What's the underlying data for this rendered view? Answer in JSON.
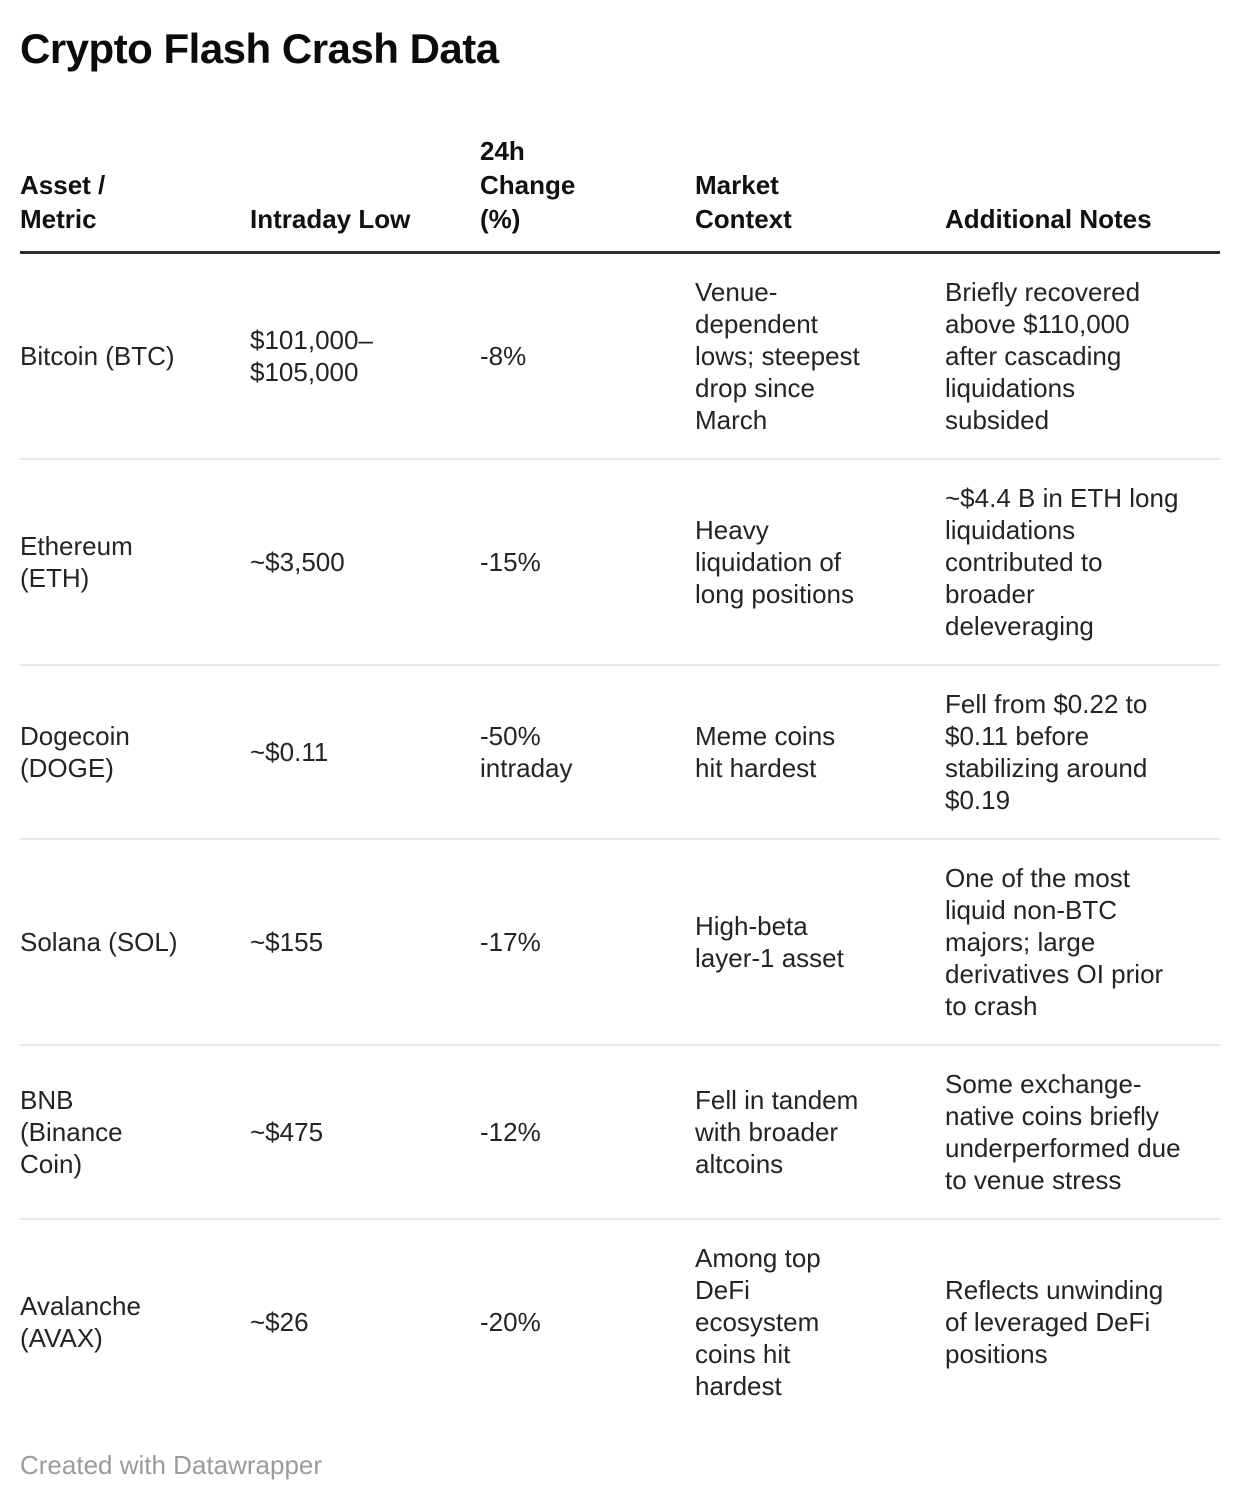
{
  "title": "Crypto Flash Crash Data",
  "footer": {
    "credit": "Created with Datawrapper"
  },
  "colors": {
    "title": "#0b0b0b",
    "header_text": "#111111",
    "body_text": "#242424",
    "header_rule": "#2e2e2e",
    "row_rule": "#e7e7e7",
    "footer_text": "#9b9b9b",
    "background": "#ffffff"
  },
  "chart_data": {
    "type": "table",
    "title": "Crypto Flash Crash Data",
    "columns": [
      "Asset / Metric",
      "Intraday Low",
      "24h Change (%)",
      "Market Context",
      "Additional Notes"
    ],
    "rows": [
      {
        "asset": "Bitcoin (BTC)",
        "intraday_low": "$101,000–$105,000",
        "change_24h": "-8%",
        "market_context": "Venue-dependent lows; steepest drop since March",
        "additional_notes": "Briefly recovered above $110,000 after cascading liquidations subsided"
      },
      {
        "asset": "Ethereum (ETH)",
        "intraday_low": "~$3,500",
        "change_24h": "-15%",
        "market_context": "Heavy liquidation of long positions",
        "additional_notes": "~$4.4 B in ETH long liquidations contributed to broader deleveraging"
      },
      {
        "asset": "Dogecoin (DOGE)",
        "intraday_low": "~$0.11",
        "change_24h": "-50% intraday",
        "market_context": "Meme coins hit hardest",
        "additional_notes": "Fell from $0.22 to $0.11 before stabilizing around $0.19"
      },
      {
        "asset": "Solana (SOL)",
        "intraday_low": "~$155",
        "change_24h": "-17%",
        "market_context": "High-beta layer-1 asset",
        "additional_notes": "One of the most liquid non-BTC majors; large derivatives OI prior to crash"
      },
      {
        "asset": "BNB (Binance Coin)",
        "intraday_low": "~$475",
        "change_24h": "-12%",
        "market_context": "Fell in tandem with broader altcoins",
        "additional_notes": "Some exchange-native coins briefly underperformed due to venue stress"
      },
      {
        "asset": "Avalanche (AVAX)",
        "intraday_low": "~$26",
        "change_24h": "-20%",
        "market_context": "Among top DeFi ecosystem coins hit hardest",
        "additional_notes": "Reflects unwinding of leveraged DeFi positions"
      }
    ]
  },
  "display": {
    "headers": {
      "asset": "Asset /\nMetric",
      "intraday_low": "Intraday Low",
      "change_24h": "24h\nChange\n(%)",
      "market_context": "Market\nContext",
      "additional_notes": "Additional Notes"
    },
    "rows": [
      {
        "asset": "Bitcoin (BTC)",
        "intraday_low": "$101,000–\n$105,000",
        "change_24h": "-8%",
        "market_context": "Venue-\ndependent\nlows; steepest\ndrop since\nMarch",
        "additional_notes": "Briefly recovered\nabove $110,000\nafter cascading\nliquidations\nsubsided"
      },
      {
        "asset": "Ethereum\n(ETH)",
        "intraday_low": "~$3,500",
        "change_24h": "-15%",
        "market_context": "Heavy\nliquidation of\nlong positions",
        "additional_notes": "~$4.4 B in ETH long\nliquidations\ncontributed to\nbroader\ndeleveraging"
      },
      {
        "asset": "Dogecoin\n(DOGE)",
        "intraday_low": "~$0.11",
        "change_24h": "-50%\nintraday",
        "market_context": "Meme coins\nhit hardest",
        "additional_notes": "Fell from $0.22 to\n$0.11 before\nstabilizing around\n$0.19"
      },
      {
        "asset": "Solana (SOL)",
        "intraday_low": "~$155",
        "change_24h": "-17%",
        "market_context": "High-beta\nlayer-1 asset",
        "additional_notes": "One of the most\nliquid non-BTC\nmajors; large\nderivatives OI prior\nto crash"
      },
      {
        "asset": "BNB\n(Binance\nCoin)",
        "intraday_low": "~$475",
        "change_24h": "-12%",
        "market_context": "Fell in tandem\nwith broader\naltcoins",
        "additional_notes": "Some exchange-\nnative coins briefly\nunderperformed due\nto venue stress"
      },
      {
        "asset": "Avalanche\n(AVAX)",
        "intraday_low": "~$26",
        "change_24h": "-20%",
        "market_context": "Among top\nDeFi\necosystem\ncoins hit\nhardest",
        "additional_notes": "Reflects unwinding\nof leveraged DeFi\npositions"
      }
    ]
  }
}
